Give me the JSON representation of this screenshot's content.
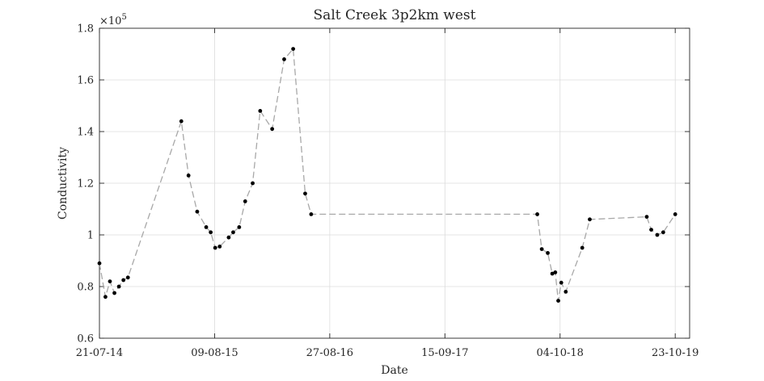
{
  "chart_data": {
    "type": "line",
    "title": "Salt Creek 3p2km west",
    "xlabel": "Date",
    "ylabel": "Conductivity",
    "y_exponent_label": "×10",
    "y_exponent_power": "5",
    "xlim": [
      "2014-07-21",
      "2019-12-10"
    ],
    "ylim": [
      0.6,
      1.8
    ],
    "grid": true,
    "x_ticks": [
      {
        "date": "2014-07-21",
        "label": "21-07-14"
      },
      {
        "date": "2015-08-09",
        "label": "09-08-15"
      },
      {
        "date": "2016-08-27",
        "label": "27-08-16"
      },
      {
        "date": "2017-09-15",
        "label": "15-09-17"
      },
      {
        "date": "2018-10-04",
        "label": "04-10-18"
      },
      {
        "date": "2019-10-23",
        "label": "23-10-19"
      }
    ],
    "y_ticks": [
      {
        "value": 0.6,
        "label": "0.6"
      },
      {
        "value": 0.8,
        "label": "0.8"
      },
      {
        "value": 1.0,
        "label": "1"
      },
      {
        "value": 1.2,
        "label": "1.2"
      },
      {
        "value": 1.4,
        "label": "1.4"
      },
      {
        "value": 1.6,
        "label": "1.6"
      },
      {
        "value": 1.8,
        "label": "1.8"
      }
    ],
    "series": [
      {
        "line_color": "#a8a8a8",
        "marker_color": "#000000",
        "line_style": "dashed",
        "points": [
          {
            "x": "2014-07-21",
            "y": 0.89
          },
          {
            "x": "2014-08-10",
            "y": 0.76
          },
          {
            "x": "2014-08-25",
            "y": 0.82
          },
          {
            "x": "2014-09-09",
            "y": 0.775
          },
          {
            "x": "2014-09-24",
            "y": 0.8
          },
          {
            "x": "2014-10-09",
            "y": 0.825
          },
          {
            "x": "2014-10-24",
            "y": 0.835
          },
          {
            "x": "2015-04-20",
            "y": 1.44
          },
          {
            "x": "2015-05-14",
            "y": 1.23
          },
          {
            "x": "2015-06-12",
            "y": 1.09
          },
          {
            "x": "2015-07-12",
            "y": 1.03
          },
          {
            "x": "2015-07-27",
            "y": 1.01
          },
          {
            "x": "2015-08-11",
            "y": 0.95
          },
          {
            "x": "2015-08-26",
            "y": 0.955
          },
          {
            "x": "2015-09-25",
            "y": 0.99
          },
          {
            "x": "2015-10-10",
            "y": 1.01
          },
          {
            "x": "2015-10-30",
            "y": 1.03
          },
          {
            "x": "2015-11-19",
            "y": 1.13
          },
          {
            "x": "2015-12-14",
            "y": 1.2
          },
          {
            "x": "2016-01-08",
            "y": 1.48
          },
          {
            "x": "2016-02-17",
            "y": 1.41
          },
          {
            "x": "2016-03-28",
            "y": 1.68
          },
          {
            "x": "2016-04-27",
            "y": 1.72
          },
          {
            "x": "2016-06-06",
            "y": 1.16
          },
          {
            "x": "2016-06-26",
            "y": 1.08
          },
          {
            "x": "2018-07-20",
            "y": 1.08
          },
          {
            "x": "2018-08-04",
            "y": 0.945
          },
          {
            "x": "2018-08-24",
            "y": 0.93
          },
          {
            "x": "2018-09-08",
            "y": 0.85
          },
          {
            "x": "2018-09-18",
            "y": 0.855
          },
          {
            "x": "2018-09-28",
            "y": 0.745
          },
          {
            "x": "2018-10-08",
            "y": 0.815
          },
          {
            "x": "2018-10-23",
            "y": 0.78
          },
          {
            "x": "2018-12-17",
            "y": 0.95
          },
          {
            "x": "2019-01-11",
            "y": 1.06
          },
          {
            "x": "2019-07-20",
            "y": 1.07
          },
          {
            "x": "2019-08-04",
            "y": 1.02
          },
          {
            "x": "2019-08-24",
            "y": 1.0
          },
          {
            "x": "2019-09-13",
            "y": 1.01
          },
          {
            "x": "2019-10-23",
            "y": 1.08
          }
        ]
      }
    ]
  }
}
